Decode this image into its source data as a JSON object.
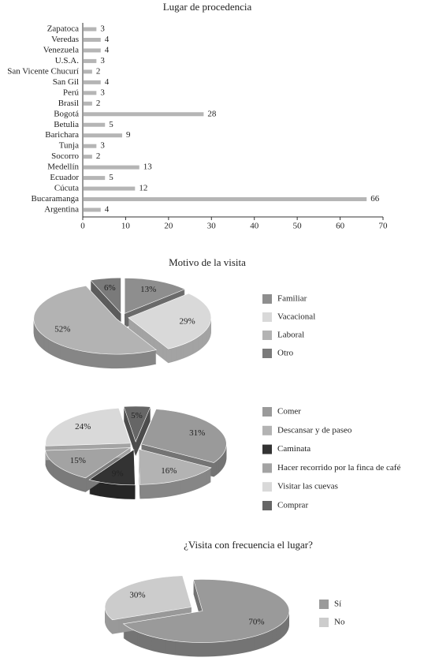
{
  "chart_data": [
    {
      "type": "bar",
      "orientation": "horizontal",
      "title": "Lugar de procedencia",
      "categories": [
        "Zapatoca",
        "Veredas",
        "Venezuela",
        "U.S.A.",
        "San Vicente Chucurí",
        "San Gil",
        "Perú",
        "Brasil",
        "Bogotá",
        "Betulia",
        "Barichara",
        "Tunja",
        "Socorro",
        "Medellín",
        "Ecuador",
        "Cúcuta",
        "Bucaramanga",
        "Argentina"
      ],
      "values": [
        3,
        4,
        4,
        3,
        2,
        4,
        3,
        2,
        28,
        5,
        9,
        3,
        2,
        13,
        5,
        12,
        66,
        4
      ],
      "color": "#b5b5b5",
      "xlim": [
        0,
        70
      ],
      "xticks": [
        0,
        10,
        20,
        30,
        40,
        50,
        60,
        70
      ],
      "grid": false
    },
    {
      "type": "pie",
      "title": "Motivo de la visita",
      "categories": [
        "Familiar",
        "Vacacional",
        "Laboral",
        "Otro"
      ],
      "values": [
        13,
        29,
        52,
        6
      ],
      "value_labels": [
        "13%",
        "29%",
        "52%",
        "6%"
      ],
      "colors": [
        "#8e8e8e",
        "#d9d9d9",
        "#b3b3b3",
        "#7a7a7a"
      ],
      "legend": "right"
    },
    {
      "type": "pie",
      "categories": [
        "Comer",
        "Descansar y de paseo",
        "Caminata",
        "Hacer recorrido por la finca de café",
        "Visitar las cuevas",
        "Comprar"
      ],
      "values": [
        31,
        16,
        9,
        15,
        24,
        5
      ],
      "value_labels": [
        "31%",
        "16%",
        "9%",
        "15%",
        "24%",
        "5%"
      ],
      "colors": [
        "#9a9a9a",
        "#b3b3b3",
        "#333333",
        "#a3a3a3",
        "#d9d9d9",
        "#666666"
      ],
      "legend": "right"
    },
    {
      "type": "pie",
      "title": "¿Visita con frecuencia el lugar?",
      "categories": [
        "Sí",
        "No"
      ],
      "values": [
        70,
        30
      ],
      "value_labels": [
        "70%",
        "30%"
      ],
      "colors": [
        "#9a9a9a",
        "#cccccc"
      ],
      "legend": "right"
    }
  ]
}
